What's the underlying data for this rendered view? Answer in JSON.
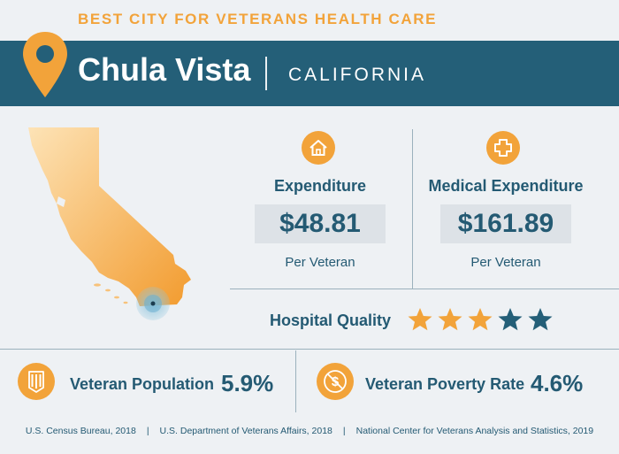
{
  "header": {
    "title": "BEST CITY FOR VETERANS HEALTH CARE",
    "city": "Chula Vista",
    "state": "CALIFORNIA"
  },
  "stats": {
    "expenditure": {
      "title": "Expenditure",
      "value": "$48.81",
      "per": "Per Veteran",
      "icon": "house-icon"
    },
    "medical_expenditure": {
      "title": "Medical Expenditure",
      "value": "$161.89",
      "per": "Per Veteran",
      "icon": "medical-cross-icon"
    }
  },
  "hospital_quality": {
    "label": "Hospital Quality",
    "rating": 3,
    "max": 5
  },
  "bottom": {
    "veteran_population": {
      "label": "Veteran Population",
      "value": "5.9%",
      "icon": "military-badge-icon"
    },
    "veteran_poverty_rate": {
      "label": "Veteran Poverty Rate",
      "value": "4.6%",
      "icon": "no-dollar-icon"
    }
  },
  "sources": [
    "U.S. Census Bureau, 2018",
    "U.S. Department of Veterans Affairs, 2018",
    "National Center for Veterans Analysis and Statistics, 2019"
  ],
  "colors": {
    "accent": "#f2a33a",
    "navy": "#245f78",
    "background": "#eef1f4",
    "star_empty": "#245f78"
  }
}
